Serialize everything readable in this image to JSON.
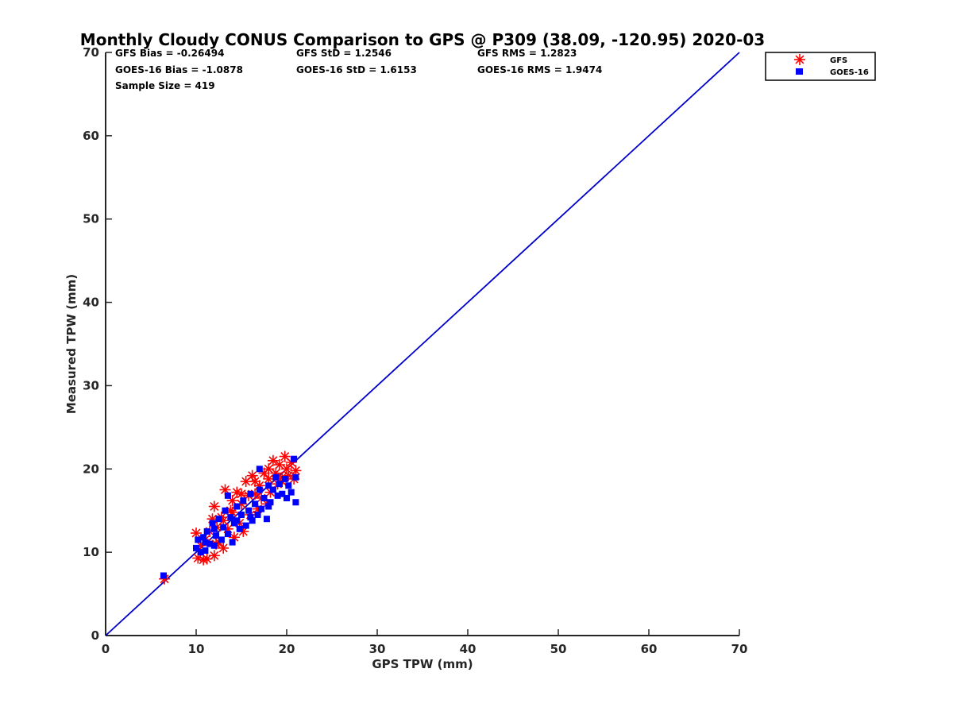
{
  "chart_data": {
    "type": "scatter",
    "title": "Monthly Cloudy CONUS Comparison to GPS @ P309 (38.09, -120.95) 2020-03",
    "xlabel": "GPS TPW (mm)",
    "ylabel": "Measured TPW (mm)",
    "xlim": [
      0,
      70
    ],
    "ylim": [
      0,
      70
    ],
    "xticks": [
      "0",
      "10",
      "20",
      "30",
      "40",
      "50",
      "60",
      "70"
    ],
    "yticks": [
      "0",
      "10",
      "20",
      "30",
      "40",
      "50",
      "60",
      "70"
    ],
    "grid": false,
    "legend_position": "top-right",
    "stats": {
      "gfs_bias": "GFS Bias = -0.26494",
      "gfs_std": "GFS StD = 1.2546",
      "gfs_rms": "GFS RMS = 1.2823",
      "goes_bias": "GOES-16 Bias = -1.0878",
      "goes_std": "GOES-16 StD = 1.6153",
      "goes_rms": "GOES-16 RMS = 1.9474",
      "sample_size": "Sample Size = 419"
    },
    "reference_line": {
      "name": "1:1",
      "x": [
        0,
        70
      ],
      "y": [
        0,
        70
      ],
      "color": "#0000cc"
    },
    "series": [
      {
        "name": "GFS",
        "marker": "asterisk",
        "color": "#ff0000",
        "points": [
          [
            6.5,
            6.8
          ],
          [
            10.0,
            12.3
          ],
          [
            10.2,
            9.3
          ],
          [
            10.5,
            10.8
          ],
          [
            10.8,
            9.1
          ],
          [
            11.0,
            11.5
          ],
          [
            11.2,
            9.2
          ],
          [
            11.5,
            12.5
          ],
          [
            12.0,
            9.6
          ],
          [
            12.0,
            15.5
          ],
          [
            12.3,
            13.0
          ],
          [
            12.5,
            11.2
          ],
          [
            12.8,
            14.2
          ],
          [
            13.0,
            10.5
          ],
          [
            13.2,
            17.5
          ],
          [
            13.5,
            12.8
          ],
          [
            13.8,
            15.0
          ],
          [
            14.0,
            16.2
          ],
          [
            14.2,
            11.8
          ],
          [
            14.5,
            17.2
          ],
          [
            14.8,
            13.5
          ],
          [
            15.0,
            15.8
          ],
          [
            15.2,
            12.5
          ],
          [
            15.5,
            18.5
          ],
          [
            15.8,
            16.8
          ],
          [
            16.0,
            14.5
          ],
          [
            16.2,
            19.2
          ],
          [
            16.5,
            17.0
          ],
          [
            16.8,
            15.2
          ],
          [
            17.0,
            18.0
          ],
          [
            17.2,
            16.5
          ],
          [
            17.5,
            19.5
          ],
          [
            17.8,
            15.8
          ],
          [
            18.0,
            18.8
          ],
          [
            18.2,
            17.2
          ],
          [
            18.5,
            21.0
          ],
          [
            18.8,
            19.5
          ],
          [
            19.0,
            18.2
          ],
          [
            19.2,
            20.5
          ],
          [
            19.5,
            19.0
          ],
          [
            19.8,
            21.5
          ],
          [
            20.0,
            20.0
          ],
          [
            20.2,
            19.2
          ],
          [
            20.5,
            20.8
          ],
          [
            20.8,
            18.8
          ],
          [
            21.0,
            19.8
          ],
          [
            11.8,
            14.0
          ],
          [
            12.2,
            11.0
          ],
          [
            13.0,
            13.8
          ],
          [
            14.0,
            14.8
          ],
          [
            15.0,
            17.0
          ],
          [
            16.5,
            18.5
          ],
          [
            18.0,
            20.0
          ],
          [
            19.5,
            18.5
          ]
        ]
      },
      {
        "name": "GOES-16",
        "marker": "square",
        "color": "#0000ff",
        "points": [
          [
            6.4,
            7.2
          ],
          [
            10.0,
            10.5
          ],
          [
            10.2,
            11.5
          ],
          [
            10.5,
            10.0
          ],
          [
            10.8,
            11.8
          ],
          [
            11.0,
            10.2
          ],
          [
            11.2,
            12.5
          ],
          [
            11.5,
            11.0
          ],
          [
            11.8,
            13.5
          ],
          [
            12.0,
            10.8
          ],
          [
            12.2,
            12.0
          ],
          [
            12.5,
            14.0
          ],
          [
            12.8,
            11.5
          ],
          [
            13.0,
            13.0
          ],
          [
            13.2,
            15.0
          ],
          [
            13.5,
            12.2
          ],
          [
            13.8,
            14.2
          ],
          [
            14.0,
            11.2
          ],
          [
            14.2,
            13.5
          ],
          [
            14.5,
            15.5
          ],
          [
            14.8,
            12.8
          ],
          [
            15.0,
            14.5
          ],
          [
            15.2,
            16.2
          ],
          [
            15.5,
            13.2
          ],
          [
            15.8,
            15.0
          ],
          [
            16.0,
            17.0
          ],
          [
            16.2,
            13.8
          ],
          [
            16.5,
            15.8
          ],
          [
            16.8,
            14.5
          ],
          [
            17.0,
            17.5
          ],
          [
            17.2,
            15.2
          ],
          [
            17.5,
            16.5
          ],
          [
            17.8,
            14.0
          ],
          [
            18.0,
            18.0
          ],
          [
            18.2,
            16.0
          ],
          [
            18.5,
            17.5
          ],
          [
            18.8,
            19.0
          ],
          [
            19.0,
            16.8
          ],
          [
            19.2,
            18.2
          ],
          [
            19.5,
            17.0
          ],
          [
            19.8,
            18.8
          ],
          [
            20.0,
            16.5
          ],
          [
            20.2,
            18.0
          ],
          [
            20.5,
            17.2
          ],
          [
            20.8,
            21.2
          ],
          [
            21.0,
            16.0
          ],
          [
            21.0,
            19.0
          ],
          [
            17.0,
            20.0
          ],
          [
            13.5,
            16.8
          ],
          [
            12.0,
            12.8
          ],
          [
            11.0,
            11.2
          ],
          [
            16.0,
            14.2
          ],
          [
            14.5,
            13.8
          ],
          [
            18.0,
            15.5
          ]
        ]
      }
    ]
  }
}
